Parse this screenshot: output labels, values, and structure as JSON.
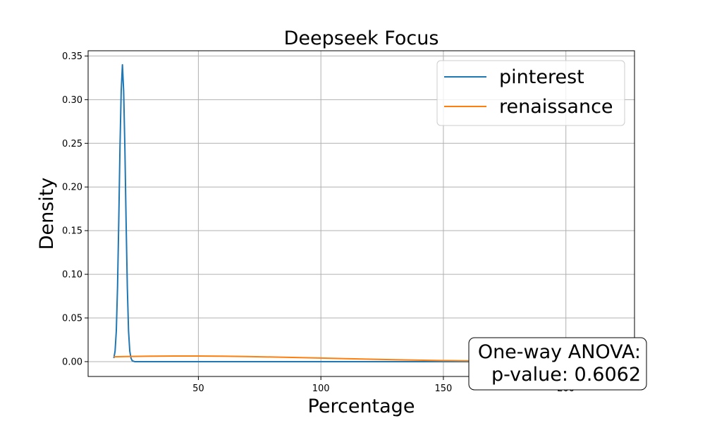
{
  "chart_data": {
    "type": "line",
    "title": "Deepseek Focus",
    "xlabel": "Percentage",
    "ylabel": "Density",
    "xlim": [
      5,
      228
    ],
    "ylim": [
      -0.017,
      0.356
    ],
    "xticks": [
      50,
      100,
      150,
      200
    ],
    "yticks": [
      0.0,
      0.05,
      0.1,
      0.15,
      0.2,
      0.25,
      0.3,
      0.35
    ],
    "xtick_labels": [
      "50",
      "100",
      "150",
      "200"
    ],
    "ytick_labels": [
      "0.00",
      "0.05",
      "0.10",
      "0.15",
      "0.20",
      "0.25",
      "0.30",
      "0.35"
    ],
    "grid": true,
    "legend_position": "top-right",
    "series": [
      {
        "name": "pinterest",
        "color": "#1f77b4",
        "x": [
          15.5,
          16,
          16.5,
          17,
          17.5,
          18,
          18.5,
          19,
          19.5,
          20,
          20.5,
          21,
          21.5,
          22,
          22.5,
          23,
          24,
          30,
          60,
          100,
          150,
          200,
          216
        ],
        "y": [
          0.004,
          0.012,
          0.035,
          0.085,
          0.16,
          0.245,
          0.31,
          0.34,
          0.31,
          0.245,
          0.16,
          0.085,
          0.035,
          0.012,
          0.004,
          0.001,
          0.0,
          0.0,
          0.0,
          0.0,
          0.0,
          0.0,
          0.0
        ]
      },
      {
        "name": "renaissance",
        "color": "#ff7f0e",
        "x": [
          15.5,
          20,
          30,
          40,
          50,
          60,
          70,
          80,
          90,
          100,
          110,
          120,
          130,
          140,
          150,
          160,
          170,
          180,
          190,
          200,
          210,
          216
        ],
        "y": [
          0.0055,
          0.0058,
          0.0062,
          0.0064,
          0.0064,
          0.0062,
          0.0058,
          0.0053,
          0.0047,
          0.0041,
          0.0034,
          0.0028,
          0.0022,
          0.0017,
          0.0012,
          0.0009,
          0.0006,
          0.0004,
          0.0003,
          0.0002,
          0.0001,
          0.0001
        ]
      }
    ],
    "annotation": {
      "line1": "One-way ANOVA:",
      "line2": "p-value: 0.6062",
      "position": "bottom-right"
    }
  }
}
